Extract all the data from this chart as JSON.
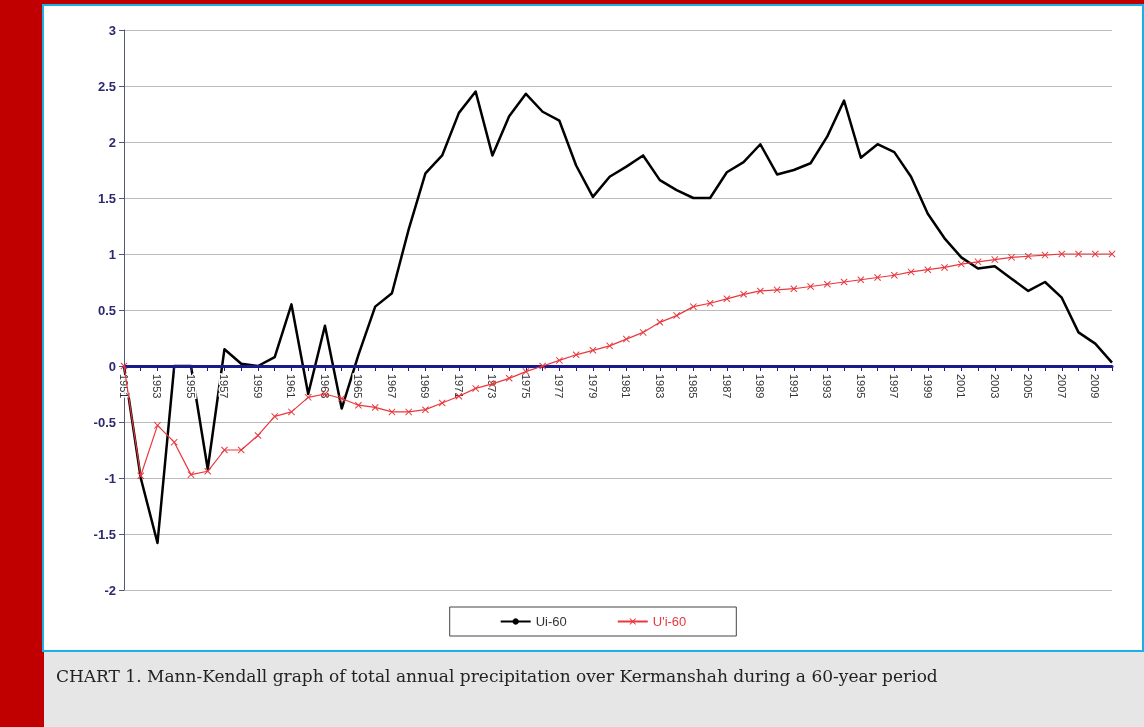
{
  "chart_data": {
    "type": "line",
    "categories": [
      "1951",
      null,
      "1953",
      null,
      "1955",
      null,
      "1957",
      null,
      "1959",
      null,
      "1961",
      null,
      "1963",
      null,
      "1965",
      null,
      "1967",
      null,
      "1969",
      null,
      "1971",
      null,
      "1973",
      null,
      "1975",
      null,
      "1977",
      null,
      "1979",
      null,
      "1981",
      null,
      "1983",
      null,
      "1985",
      null,
      "1987",
      null,
      "1989",
      null,
      "1991",
      null,
      "1993",
      null,
      "1995",
      null,
      "1997",
      null,
      "1999",
      null,
      "2001",
      null,
      "2003",
      null,
      "2005",
      null,
      "2007",
      null,
      "2009",
      null
    ],
    "series": [
      {
        "name": "Ui-60",
        "color": "#000000",
        "marker": "none",
        "values": [
          0,
          -1.0,
          -1.58,
          0,
          0,
          -0.92,
          0.15,
          0.02,
          0.0,
          0.08,
          0.55,
          -0.25,
          0.36,
          -0.38,
          0.1,
          0.53,
          0.65,
          1.22,
          1.72,
          1.88,
          2.26,
          2.45,
          1.88,
          2.23,
          2.43,
          2.27,
          2.19,
          1.79,
          1.51,
          1.69,
          1.78,
          1.88,
          1.66,
          1.57,
          1.5,
          1.5,
          1.73,
          1.82,
          1.98,
          1.71,
          1.75,
          1.81,
          2.05,
          2.37,
          1.86,
          1.98,
          1.91,
          1.69,
          1.36,
          1.14,
          0.97,
          0.87,
          0.89,
          0.78,
          0.67,
          0.75,
          0.61,
          0.3,
          0.2,
          0.03
        ]
      },
      {
        "name": "U'i-60",
        "color": "#e8383d",
        "marker": "cross",
        "values": [
          0,
          -0.98,
          -0.53,
          -0.68,
          -0.97,
          -0.94,
          -0.75,
          -0.75,
          -0.62,
          -0.45,
          -0.41,
          -0.28,
          -0.25,
          -0.29,
          -0.35,
          -0.37,
          -0.41,
          -0.41,
          -0.39,
          -0.33,
          -0.27,
          -0.2,
          -0.16,
          -0.11,
          -0.05,
          0.0,
          0.05,
          0.1,
          0.14,
          0.18,
          0.24,
          0.3,
          0.39,
          0.45,
          0.53,
          0.56,
          0.6,
          0.64,
          0.67,
          0.68,
          0.69,
          0.71,
          0.73,
          0.75,
          0.77,
          0.79,
          0.81,
          0.84,
          0.86,
          0.88,
          0.91,
          0.93,
          0.95,
          0.97,
          0.98,
          0.99,
          1.0,
          1.0,
          1.0,
          1.0
        ]
      }
    ],
    "ylim": [
      -2,
      3
    ],
    "yticks": [
      -2,
      -1.5,
      -1,
      -0.5,
      0,
      0.5,
      1,
      1.5,
      2,
      2.5,
      3
    ],
    "grid": "y",
    "legend": "bottom",
    "annotations": [
      "CHART 1. Mann-Kendall graph of total annual precipitation over Kermanshah during a 60-year period"
    ]
  }
}
